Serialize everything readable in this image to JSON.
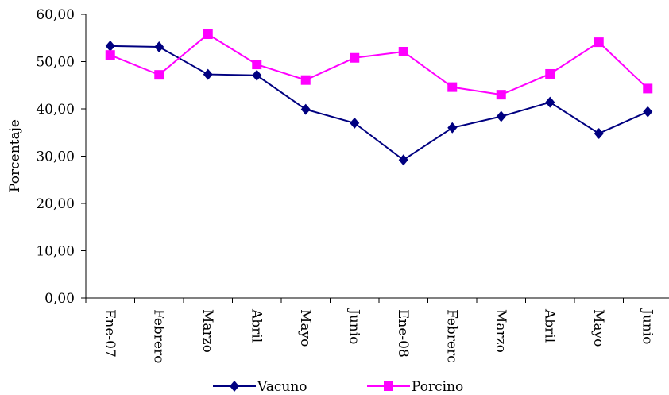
{
  "chart_data": {
    "type": "line",
    "title": "",
    "ylabel": "Porcentaje",
    "xlabel": "",
    "categories": [
      "Ene-07",
      "Febrero",
      "Marzo",
      "Abril",
      "Mayo",
      "Junio",
      "Ene-08",
      "Febrerc",
      "Marzo",
      "Abril",
      "Mayo",
      "Junio"
    ],
    "ylim": [
      0,
      60
    ],
    "yticks": [
      "0,00",
      "10,00",
      "20,00",
      "30,00",
      "40,00",
      "50,00",
      "60,00"
    ],
    "grid": false,
    "legend_position": "bottom",
    "series": [
      {
        "name": "Vacuno",
        "color": "#000080",
        "marker": "diamond",
        "values": [
          53.3,
          53.1,
          47.3,
          47.1,
          39.9,
          37.0,
          29.2,
          36.0,
          38.4,
          41.4,
          34.8,
          39.4
        ]
      },
      {
        "name": "Porcino",
        "color": "#FF00FF",
        "marker": "square",
        "values": [
          51.4,
          47.2,
          55.8,
          49.4,
          46.1,
          50.8,
          52.1,
          44.6,
          43.0,
          47.4,
          54.1,
          44.3
        ]
      }
    ]
  }
}
